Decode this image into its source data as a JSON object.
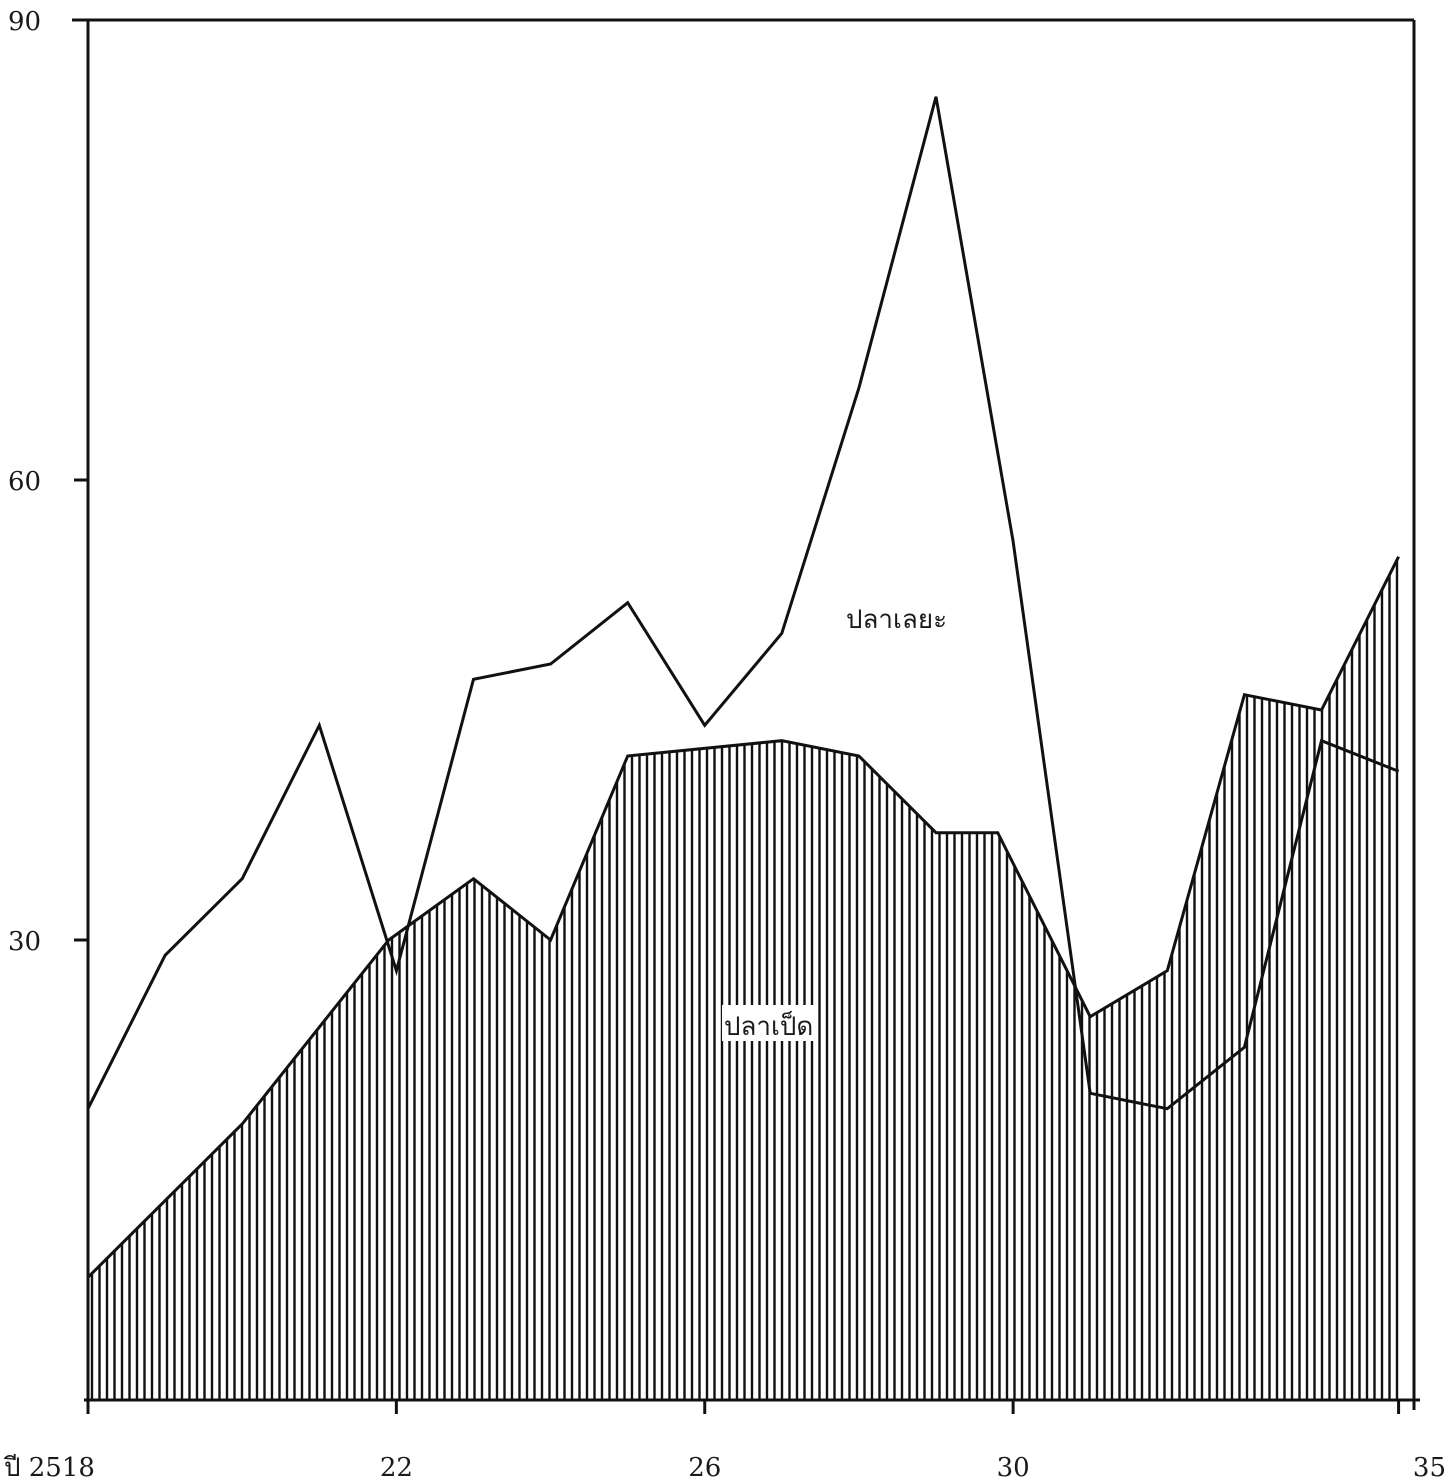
{
  "chart_data": {
    "type": "area",
    "x": [
      2518,
      2519,
      2520,
      2521,
      2522,
      2523,
      2524,
      2525,
      2526,
      2527,
      2528,
      2529,
      2530,
      2531,
      2532,
      2533,
      2534,
      2535
    ],
    "series": [
      {
        "name": "ปลาเลยะ",
        "style": "line",
        "values": [
          19,
          29,
          34,
          44,
          28,
          47,
          48,
          52,
          44,
          50,
          66,
          85,
          56,
          20,
          19,
          23,
          43,
          41
        ]
      },
      {
        "name": "ปลาเป็ด",
        "style": "hatched-area",
        "values": [
          8,
          18,
          30,
          34,
          30,
          42,
          43,
          42,
          37,
          37,
          25,
          28,
          46,
          45,
          55
        ],
        "x": [
          2518,
          2520,
          2521.9,
          2523,
          2524,
          2525,
          2527,
          2528,
          2529,
          2529.8,
          2531,
          2532,
          2533,
          2534,
          2535
        ]
      }
    ],
    "x_ticks": [
      "ปี 2518",
      "22",
      "26",
      "30",
      "35"
    ],
    "x_tick_values": [
      2518,
      2522,
      2526,
      2530,
      2535
    ],
    "y_ticks": [
      "90",
      "60",
      "30"
    ],
    "y_tick_values": [
      90,
      60,
      30
    ],
    "xlim": [
      2518,
      2535.2
    ],
    "ylim": [
      0,
      90
    ],
    "grid": false,
    "colors": {
      "ink": "#111111",
      "paper": "#ffffff"
    }
  }
}
